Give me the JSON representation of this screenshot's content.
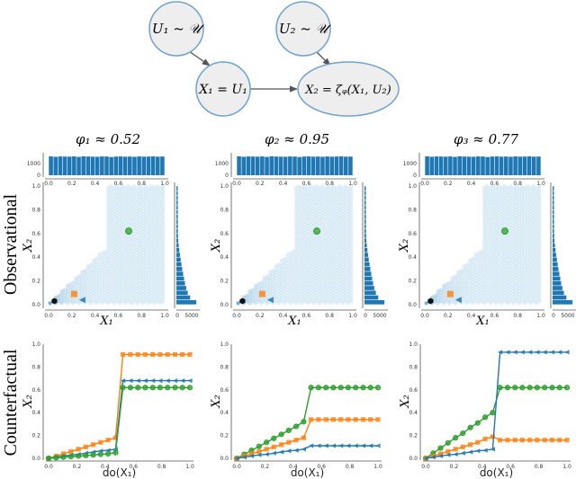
{
  "diagram": {
    "nodes": {
      "u1": "U₁ ~ 𝒰",
      "u2": "U₂ ~ 𝒰",
      "x1": "X₁ = U₁",
      "x2": "X₂ = ζᵩ(X₁, U₂)"
    },
    "edges": [
      [
        "u1",
        "x1"
      ],
      [
        "u2",
        "x2"
      ],
      [
        "x1",
        "x2"
      ]
    ],
    "node_fill": "#eeeeee",
    "node_stroke": "#6fa3cc"
  },
  "row_labels": {
    "observational": "Observational",
    "counterfactual": "Counterfactual"
  },
  "columns": [
    {
      "title": "φ₁ ≈ 0.52"
    },
    {
      "title": "φ₂ ≈ 0.95"
    },
    {
      "title": "φ₃ ≈ 0.77"
    }
  ],
  "colors": {
    "blue": "#1f77b4",
    "orange": "#ff7f0e",
    "green": "#2ca02c",
    "black": "#111111",
    "hex": "#6baed6"
  },
  "chart_data": [
    {
      "type": "hexbin-joint",
      "xlabel": "X₁",
      "ylabel": "X₂",
      "xlim": [
        0,
        1
      ],
      "ylim": [
        0,
        1
      ],
      "xticks": [
        "0.0",
        "0.2",
        "0.4",
        "0.6",
        "0.8",
        "1.0"
      ],
      "yticks": [
        "0.0",
        "0.2",
        "0.4",
        "0.6",
        "0.8",
        "1.0"
      ],
      "top_hist_yticks": [
        "0",
        "1000"
      ],
      "right_hist_xticks": [
        "0",
        "5000"
      ],
      "top_hist_counts": [
        1620,
        1580,
        1610,
        1600,
        1590,
        1610,
        1570,
        1620,
        1600,
        1590,
        1580,
        1610,
        1600,
        1560,
        1600,
        1610,
        1590,
        1600,
        1580,
        1610,
        1590,
        1600,
        1620,
        1590,
        1600
      ],
      "right_hist_counts": [
        6500,
        4500,
        3700,
        3200,
        2800,
        2500,
        2200,
        1900,
        1650,
        1400,
        1150,
        950,
        750,
        600,
        520,
        480,
        470,
        460,
        460,
        450,
        450,
        440,
        440,
        430,
        430
      ],
      "markers": [
        {
          "shape": "circle",
          "color": "green",
          "x": 0.69,
          "y": 0.62
        },
        {
          "shape": "square",
          "color": "orange",
          "x": 0.22,
          "y": 0.09
        },
        {
          "shape": "triangle-left",
          "color": "blue",
          "x": 0.29,
          "y": 0.04
        },
        {
          "shape": "hexagon",
          "color": "black",
          "x": 0.05,
          "y": 0.03
        }
      ]
    },
    {
      "type": "line",
      "xlabel": "do(X₁)",
      "ylabel": "X₂",
      "xlim": [
        0,
        1
      ],
      "ylim": [
        0,
        1
      ],
      "xticks": [
        "0.0",
        "0.2",
        "0.4",
        "0.6",
        "0.8",
        "1.0"
      ],
      "yticks": [
        "0.0",
        "0.2",
        "0.4",
        "0.6",
        "0.8",
        "1.0"
      ],
      "x": [
        0,
        0.053,
        0.105,
        0.158,
        0.211,
        0.263,
        0.316,
        0.368,
        0.421,
        0.474,
        0.526,
        0.579,
        0.632,
        0.684,
        0.737,
        0.789,
        0.842,
        0.895,
        0.947,
        1.0
      ],
      "panels": [
        {
          "series": [
            {
              "color": "orange",
              "marker": "square",
              "values": [
                0,
                0.02,
                0.04,
                0.06,
                0.08,
                0.1,
                0.12,
                0.14,
                0.16,
                0.18,
                0.91,
                0.91,
                0.91,
                0.91,
                0.91,
                0.91,
                0.91,
                0.91,
                0.91,
                0.91
              ]
            },
            {
              "color": "blue",
              "marker": "triangle-left",
              "values": [
                0,
                0.01,
                0.02,
                0.03,
                0.035,
                0.045,
                0.055,
                0.065,
                0.07,
                0.08,
                0.68,
                0.68,
                0.68,
                0.68,
                0.68,
                0.68,
                0.68,
                0.68,
                0.68,
                0.68
              ]
            },
            {
              "color": "green",
              "marker": "circle",
              "values": [
                0,
                0.005,
                0.01,
                0.015,
                0.02,
                0.025,
                0.03,
                0.035,
                0.04,
                0.05,
                0.62,
                0.62,
                0.62,
                0.62,
                0.62,
                0.62,
                0.62,
                0.62,
                0.62,
                0.62
              ]
            }
          ]
        },
        {
          "series": [
            {
              "color": "green",
              "marker": "circle",
              "values": [
                0,
                0.035,
                0.07,
                0.105,
                0.14,
                0.175,
                0.21,
                0.245,
                0.28,
                0.32,
                0.62,
                0.62,
                0.62,
                0.62,
                0.62,
                0.62,
                0.62,
                0.62,
                0.62,
                0.62
              ]
            },
            {
              "color": "orange",
              "marker": "square",
              "values": [
                0,
                0.02,
                0.04,
                0.06,
                0.08,
                0.1,
                0.12,
                0.14,
                0.16,
                0.18,
                0.34,
                0.34,
                0.34,
                0.34,
                0.34,
                0.34,
                0.34,
                0.34,
                0.34,
                0.34
              ]
            },
            {
              "color": "blue",
              "marker": "triangle-left",
              "values": [
                0,
                0.01,
                0.02,
                0.03,
                0.035,
                0.045,
                0.055,
                0.065,
                0.07,
                0.08,
                0.11,
                0.11,
                0.11,
                0.11,
                0.11,
                0.11,
                0.11,
                0.11,
                0.11,
                0.11
              ]
            }
          ]
        },
        {
          "series": [
            {
              "color": "green",
              "marker": "circle",
              "values": [
                0,
                0.045,
                0.09,
                0.135,
                0.18,
                0.22,
                0.27,
                0.31,
                0.36,
                0.4,
                0.62,
                0.62,
                0.62,
                0.62,
                0.62,
                0.62,
                0.62,
                0.62,
                0.62,
                0.62
              ]
            },
            {
              "color": "orange",
              "marker": "square",
              "values": [
                0,
                0.02,
                0.04,
                0.06,
                0.08,
                0.1,
                0.12,
                0.14,
                0.17,
                0.19,
                0.16,
                0.16,
                0.16,
                0.16,
                0.16,
                0.16,
                0.16,
                0.16,
                0.16,
                0.16
              ]
            },
            {
              "color": "blue",
              "marker": "triangle-left",
              "values": [
                0,
                0.01,
                0.02,
                0.03,
                0.035,
                0.045,
                0.055,
                0.065,
                0.07,
                0.08,
                0.93,
                0.93,
                0.93,
                0.93,
                0.93,
                0.93,
                0.93,
                0.93,
                0.93,
                0.93
              ]
            }
          ]
        }
      ]
    }
  ]
}
